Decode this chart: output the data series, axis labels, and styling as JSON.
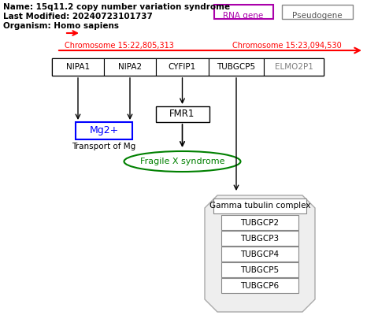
{
  "title": "Name: 15q11.2 copy number variation syndrome",
  "last_modified": "Last Modified: 20240723101737",
  "organism": "Organism: Homo sapiens",
  "chr_left": "Chromosome 15:22,805,313",
  "chr_right": "Chromosome 15:23,094,530",
  "genes": [
    "NIPA1",
    "NIPA2",
    "CYFIP1",
    "TUBGCP5",
    "ELMO2P1"
  ],
  "gene_colors": [
    "black",
    "black",
    "black",
    "black",
    "gray"
  ],
  "rna_gene_label": "RNA gene",
  "pseudogene_label": "Pseudogene",
  "mg2_label": "Mg2+",
  "transport_label": "Transport of Mg",
  "fmr1_label": "FMR1",
  "fragile_x_label": "Fragile X syndrome",
  "gamma_label": "Gamma tubulin complex",
  "tubgcp_members": [
    "TUBGCP2",
    "TUBGCP3",
    "TUBGCP4",
    "TUBGCP5",
    "TUBGCP6"
  ],
  "background_color": "#ffffff"
}
